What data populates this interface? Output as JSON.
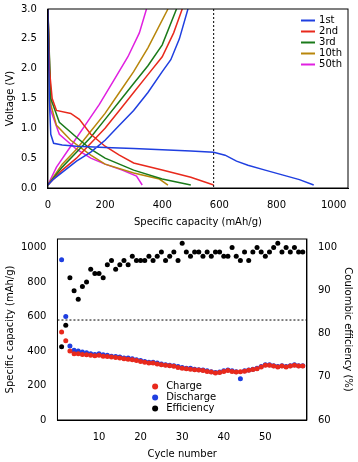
{
  "chart_data": [
    {
      "type": "line",
      "xlabel": "Specific capacity (mAh/g)",
      "ylabel": "Voltage (V)",
      "xlim": [
        0,
        1050
      ],
      "xticks": [
        0,
        200,
        400,
        600,
        800,
        1000
      ],
      "ylim": [
        0,
        3
      ],
      "yticks": [
        {
          "value": 0,
          "label": "0.0"
        },
        0.5,
        {
          "value": 1,
          "label": "1.0"
        },
        1.5,
        {
          "value": 2,
          "label": "2.0"
        },
        2.5,
        {
          "value": 3,
          "label": "3.0"
        }
      ],
      "grid": false,
      "legend": "upper right",
      "reference_lines": [
        {
          "axis": "x",
          "value": 580,
          "line_style": "dotted"
        }
      ],
      "series": [
        {
          "name": "1st",
          "color": "#1f3fe0",
          "x": [
            0,
            5,
            10,
            20,
            50,
            100,
            200,
            300,
            400,
            500,
            580,
            620,
            660,
            700,
            760,
            820,
            880,
            930,
            null,
            0,
            20,
            60,
            100,
            150,
            200,
            250,
            300,
            350,
            400,
            430,
            460,
            490
          ],
          "values": [
            3.0,
            1.5,
            0.9,
            0.75,
            0.72,
            0.7,
            0.68,
            0.66,
            0.64,
            0.62,
            0.6,
            0.55,
            0.45,
            0.38,
            0.3,
            0.22,
            0.14,
            0.05,
            null,
            0.05,
            0.15,
            0.3,
            0.45,
            0.6,
            0.8,
            1.05,
            1.3,
            1.6,
            1.95,
            2.15,
            2.5,
            3.0
          ]
        },
        {
          "name": "2nd",
          "color": "#e8291c",
          "x": [
            0,
            5,
            15,
            30,
            80,
            110,
            150,
            200,
            250,
            300,
            400,
            500,
            580,
            null,
            0,
            50,
            100,
            150,
            200,
            250,
            300,
            350,
            400,
            440,
            470
          ],
          "values": [
            3.0,
            2.0,
            1.5,
            1.3,
            1.25,
            1.15,
            0.9,
            0.7,
            0.55,
            0.42,
            0.3,
            0.18,
            0.05,
            null,
            0.05,
            0.3,
            0.5,
            0.75,
            1.0,
            1.3,
            1.6,
            1.9,
            2.2,
            2.6,
            3.0
          ]
        },
        {
          "name": "3rd",
          "color": "#1a7a1a",
          "x": [
            0,
            10,
            40,
            100,
            150,
            200,
            250,
            300,
            400,
            500,
            null,
            0,
            50,
            100,
            150,
            200,
            250,
            300,
            350,
            400,
            450
          ],
          "values": [
            3.0,
            1.5,
            1.1,
            0.85,
            0.65,
            0.5,
            0.4,
            0.3,
            0.15,
            0.05,
            null,
            0.05,
            0.35,
            0.6,
            0.85,
            1.15,
            1.45,
            1.75,
            2.05,
            2.4,
            3.0
          ]
        },
        {
          "name": "10th",
          "color": "#b8860b",
          "x": [
            0,
            10,
            30,
            80,
            150,
            200,
            300,
            390,
            420,
            null,
            0,
            50,
            100,
            150,
            200,
            250,
            300,
            350,
            420
          ],
          "values": [
            3.0,
            1.4,
            1.05,
            0.8,
            0.55,
            0.4,
            0.25,
            0.15,
            0.05,
            null,
            0.05,
            0.4,
            0.65,
            0.95,
            1.25,
            1.6,
            1.95,
            2.35,
            3.0
          ]
        },
        {
          "name": "50th",
          "color": "#e020e0",
          "x": [
            0,
            10,
            40,
            100,
            150,
            200,
            260,
            310,
            330,
            null,
            0,
            30,
            80,
            130,
            180,
            230,
            280,
            320,
            345
          ],
          "values": [
            3.0,
            1.3,
            0.9,
            0.65,
            0.5,
            0.4,
            0.3,
            0.2,
            0.05,
            null,
            0.05,
            0.35,
            0.7,
            1.05,
            1.4,
            1.8,
            2.2,
            2.6,
            3.0
          ]
        }
      ]
    },
    {
      "type": "scatter",
      "xlabel": "Cycle number",
      "ylabel": "Specific capacity (mAh/g)",
      "y2label": "Coulombic efficiency (%)",
      "xlim": [
        0,
        60
      ],
      "xticks": [
        10,
        20,
        30,
        40,
        50
      ],
      "ylim": [
        0,
        1050
      ],
      "yticks": [
        0,
        200,
        400,
        600,
        800,
        1000
      ],
      "y2lim": [
        60,
        102
      ],
      "y2ticks": [
        60,
        70,
        80,
        90,
        100
      ],
      "grid": false,
      "legend": "lower center",
      "reference_lines": [
        {
          "axis": "y",
          "value": 580,
          "line_style": "dotted"
        }
      ],
      "x": [
        1,
        2,
        3,
        4,
        5,
        6,
        7,
        8,
        9,
        10,
        11,
        12,
        13,
        14,
        15,
        16,
        17,
        18,
        19,
        20,
        21,
        22,
        23,
        24,
        25,
        26,
        27,
        28,
        29,
        30,
        31,
        32,
        33,
        34,
        35,
        36,
        37,
        38,
        39,
        40,
        41,
        42,
        43,
        44,
        45,
        46,
        47,
        48,
        49,
        50,
        51,
        52,
        53,
        54,
        55,
        56,
        57,
        58,
        59
      ],
      "series": [
        {
          "name": "Charge",
          "color": "#e8291c",
          "marker": "circle",
          "values": [
            510,
            460,
            400,
            385,
            385,
            380,
            378,
            375,
            372,
            375,
            370,
            368,
            365,
            362,
            360,
            355,
            352,
            350,
            345,
            340,
            335,
            330,
            330,
            325,
            320,
            318,
            315,
            312,
            305,
            300,
            298,
            295,
            292,
            290,
            287,
            282,
            278,
            272,
            275,
            282,
            287,
            282,
            278,
            280,
            283,
            288,
            293,
            298,
            308,
            318,
            318,
            313,
            308,
            313,
            308,
            313,
            318,
            313,
            313
          ]
        },
        {
          "name": "Discharge",
          "color": "#1f3fe0",
          "marker": "circle",
          "values": [
            930,
            600,
            430,
            405,
            400,
            395,
            390,
            385,
            380,
            385,
            378,
            375,
            370,
            368,
            365,
            360,
            360,
            355,
            350,
            345,
            340,
            335,
            335,
            330,
            325,
            320,
            318,
            315,
            310,
            305,
            300,
            300,
            295,
            292,
            290,
            285,
            280,
            275,
            278,
            285,
            290,
            285,
            280,
            240,
            285,
            290,
            295,
            300,
            310,
            320,
            320,
            315,
            310,
            315,
            310,
            315,
            320,
            315,
            315
          ]
        },
        {
          "name": "Efficiency",
          "color": "#000000",
          "marker": "circle",
          "axis": "y2",
          "values": [
            77,
            82,
            93,
            90,
            88,
            91,
            92,
            95,
            94,
            94,
            93,
            96,
            97,
            95,
            96,
            97,
            96,
            98,
            97,
            97,
            97,
            98,
            97,
            98,
            99,
            97,
            98,
            99,
            97,
            101,
            99,
            98,
            99,
            99,
            98,
            99,
            98,
            99,
            99,
            98,
            98,
            100,
            98,
            97,
            99,
            97,
            99,
            100,
            99,
            98,
            99,
            100,
            101,
            99,
            100,
            99,
            100,
            99,
            99
          ]
        }
      ]
    }
  ]
}
